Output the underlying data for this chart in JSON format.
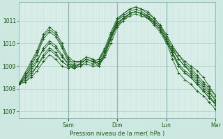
{
  "bg_color": "#cce8e0",
  "plot_bg": "#d8ece8",
  "grid_color_major": "#b8d8d0",
  "grid_color_minor": "#c8e4dc",
  "line_color": "#1a5c1a",
  "xlabel": "Pression niveau de la mer( hPa )",
  "ylim": [
    1006.7,
    1011.8
  ],
  "yticks": [
    1007,
    1008,
    1009,
    1010,
    1011
  ],
  "xlim": [
    0,
    96
  ],
  "day_ticks": [
    24,
    48,
    72,
    96
  ],
  "day_labels": [
    "Sam",
    "Dim",
    "Lun",
    "Mar"
  ],
  "series": [
    {
      "x": [
        0,
        3,
        6,
        9,
        12,
        15,
        18,
        21,
        24,
        27,
        30,
        33,
        36,
        39,
        42,
        45,
        48,
        51,
        54,
        57,
        60,
        63,
        66,
        69,
        72,
        75,
        78,
        81,
        84,
        87,
        90,
        93,
        96
      ],
      "y": [
        1008.2,
        1008.5,
        1009.0,
        1009.5,
        1010.2,
        1010.5,
        1010.3,
        1009.8,
        1009.2,
        1009.0,
        1009.1,
        1009.3,
        1009.2,
        1009.0,
        1009.5,
        1010.2,
        1010.8,
        1011.0,
        1011.2,
        1011.3,
        1011.2,
        1011.1,
        1010.8,
        1010.5,
        1010.0,
        1009.8,
        1009.5,
        1009.2,
        1009.0,
        1008.8,
        1008.5,
        1008.1,
        1007.7
      ]
    },
    {
      "x": [
        0,
        3,
        6,
        9,
        12,
        15,
        18,
        21,
        24,
        27,
        30,
        33,
        36,
        39,
        42,
        45,
        48,
        51,
        54,
        57,
        60,
        63,
        66,
        69,
        72,
        75,
        78,
        81,
        84,
        87,
        90,
        93,
        96
      ],
      "y": [
        1008.2,
        1008.4,
        1008.8,
        1009.2,
        1009.8,
        1010.1,
        1009.9,
        1009.5,
        1009.1,
        1008.9,
        1009.0,
        1009.1,
        1009.0,
        1009.0,
        1009.4,
        1010.0,
        1010.7,
        1011.0,
        1011.3,
        1011.4,
        1011.3,
        1011.2,
        1011.0,
        1010.7,
        1010.2,
        1009.5,
        1009.0,
        1008.7,
        1008.5,
        1008.2,
        1007.9,
        1007.6,
        1007.3
      ]
    },
    {
      "x": [
        0,
        3,
        6,
        9,
        12,
        15,
        18,
        21,
        24,
        27,
        30,
        33,
        36,
        39,
        42,
        45,
        48,
        51,
        54,
        57,
        60,
        63,
        66,
        69,
        72,
        75,
        78,
        81,
        84,
        87,
        90,
        93,
        96
      ],
      "y": [
        1008.2,
        1008.3,
        1008.6,
        1009.0,
        1009.5,
        1009.8,
        1009.6,
        1009.2,
        1009.0,
        1008.9,
        1009.0,
        1009.2,
        1009.1,
        1009.2,
        1009.7,
        1010.4,
        1011.0,
        1011.3,
        1011.5,
        1011.6,
        1011.5,
        1011.3,
        1011.1,
        1010.8,
        1010.3,
        1009.8,
        1009.3,
        1009.0,
        1008.8,
        1008.5,
        1008.2,
        1007.9,
        1007.5
      ]
    },
    {
      "x": [
        0,
        3,
        6,
        9,
        12,
        15,
        18,
        21,
        24,
        27,
        30,
        33,
        36,
        39,
        42,
        45,
        48,
        51,
        54,
        57,
        60,
        63,
        66,
        69,
        72,
        75,
        78,
        81,
        84,
        87,
        90,
        93,
        96
      ],
      "y": [
        1008.2,
        1008.6,
        1009.1,
        1009.6,
        1010.3,
        1010.6,
        1010.4,
        1009.9,
        1009.3,
        1009.1,
        1009.2,
        1009.4,
        1009.3,
        1009.1,
        1009.6,
        1010.3,
        1011.0,
        1011.2,
        1011.4,
        1011.5,
        1011.4,
        1011.2,
        1011.0,
        1010.7,
        1010.2,
        1009.7,
        1009.3,
        1009.0,
        1008.7,
        1008.4,
        1008.1,
        1007.8,
        1007.5
      ]
    },
    {
      "x": [
        0,
        3,
        6,
        9,
        12,
        15,
        18,
        21,
        24,
        27,
        30,
        33,
        36,
        39,
        42,
        45,
        48,
        51,
        54,
        57,
        60,
        63,
        66,
        69,
        72,
        75,
        78,
        81,
        84,
        87,
        90,
        93,
        96
      ],
      "y": [
        1008.2,
        1008.4,
        1008.7,
        1009.0,
        1009.4,
        1009.7,
        1009.5,
        1009.2,
        1009.0,
        1008.9,
        1009.1,
        1009.3,
        1009.2,
        1009.3,
        1009.8,
        1010.5,
        1011.1,
        1011.3,
        1011.5,
        1011.6,
        1011.5,
        1011.4,
        1011.1,
        1010.8,
        1010.4,
        1009.9,
        1009.5,
        1009.1,
        1008.9,
        1008.6,
        1008.3,
        1008.0,
        1007.7
      ]
    },
    {
      "x": [
        0,
        3,
        6,
        9,
        12,
        15,
        18,
        21,
        24,
        27,
        30,
        33,
        36,
        39,
        42,
        45,
        48,
        51,
        54,
        57,
        60,
        63,
        66,
        69,
        72,
        75,
        78,
        81,
        84,
        87,
        90,
        93,
        96
      ],
      "y": [
        1008.2,
        1008.5,
        1008.9,
        1009.3,
        1009.7,
        1010.0,
        1009.8,
        1009.4,
        1009.1,
        1009.0,
        1009.1,
        1009.3,
        1009.2,
        1009.1,
        1009.5,
        1010.2,
        1010.8,
        1011.1,
        1011.3,
        1011.4,
        1011.3,
        1011.1,
        1010.9,
        1010.6,
        1010.1,
        1009.6,
        1009.1,
        1008.8,
        1008.6,
        1008.3,
        1008.0,
        1007.7,
        1007.3
      ]
    },
    {
      "x": [
        0,
        3,
        6,
        9,
        12,
        15,
        18,
        21,
        24,
        27,
        30,
        33,
        36,
        39,
        42,
        45,
        48,
        51,
        54,
        57,
        60,
        63,
        66,
        69,
        72,
        75,
        78,
        81,
        84,
        87,
        90,
        93,
        96
      ],
      "y": [
        1008.2,
        1008.3,
        1008.5,
        1008.8,
        1009.2,
        1009.5,
        1009.3,
        1009.0,
        1008.9,
        1009.0,
        1009.1,
        1009.3,
        1009.2,
        1009.3,
        1009.7,
        1010.3,
        1010.9,
        1011.1,
        1011.3,
        1011.4,
        1011.3,
        1011.1,
        1010.9,
        1010.6,
        1010.1,
        1009.3,
        1008.7,
        1008.4,
        1008.2,
        1007.9,
        1007.7,
        1007.4,
        1007.1
      ]
    },
    {
      "x": [
        0,
        3,
        6,
        9,
        12,
        15,
        18,
        21,
        24,
        27,
        30,
        33,
        36,
        39,
        42,
        45,
        48,
        51,
        54,
        57,
        60,
        63,
        66,
        69,
        72,
        75,
        78,
        81,
        84,
        87,
        90,
        93,
        96
      ],
      "y": [
        1008.2,
        1008.7,
        1009.2,
        1009.7,
        1010.4,
        1010.7,
        1010.5,
        1010.0,
        1009.4,
        1009.2,
        1009.2,
        1009.4,
        1009.3,
        1009.1,
        1009.5,
        1010.2,
        1010.9,
        1011.1,
        1011.3,
        1011.4,
        1011.3,
        1011.2,
        1010.9,
        1010.6,
        1010.1,
        1009.6,
        1009.0,
        1008.7,
        1008.5,
        1008.2,
        1007.9,
        1007.6,
        1007.4
      ]
    }
  ]
}
